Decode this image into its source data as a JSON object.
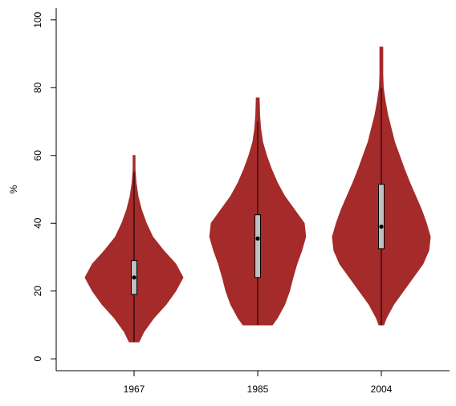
{
  "chart_data": {
    "type": "violin",
    "ylabel": "%",
    "categories": [
      "1967",
      "1985",
      "2004"
    ],
    "color": "#a52a2a",
    "box_color": "#bfbfbf",
    "ylim": [
      -3.5,
      103.5
    ],
    "yticks": [
      0,
      20,
      40,
      60,
      80,
      100
    ],
    "violins": [
      {
        "whisker_low": 5,
        "q1": 19,
        "median": 24,
        "q3": 29,
        "whisker_high": 55,
        "density_y": [
          5,
          8,
          12,
          16,
          20,
          24,
          28,
          32,
          36,
          40,
          44,
          48,
          52,
          56,
          60
        ],
        "density_width": [
          0.1,
          0.2,
          0.4,
          0.65,
          0.85,
          1,
          0.85,
          0.6,
          0.38,
          0.25,
          0.15,
          0.08,
          0.04,
          0.02,
          0.02
        ]
      },
      {
        "whisker_low": 10,
        "q1": 24,
        "median": 35.5,
        "q3": 42.5,
        "whisker_high": 70,
        "density_y": [
          10,
          12,
          16,
          20,
          24,
          28,
          32,
          36,
          40,
          44,
          48,
          52,
          56,
          60,
          64,
          68,
          72,
          77
        ],
        "density_width": [
          0.3,
          0.4,
          0.55,
          0.65,
          0.72,
          0.8,
          0.9,
          0.98,
          0.95,
          0.75,
          0.55,
          0.4,
          0.28,
          0.18,
          0.1,
          0.06,
          0.04,
          0.03
        ]
      },
      {
        "whisker_low": 10,
        "q1": 32.5,
        "median": 39,
        "q3": 51.5,
        "whisker_high": 80,
        "density_y": [
          10,
          12,
          16,
          20,
          24,
          28,
          32,
          36,
          40,
          44,
          48,
          52,
          56,
          60,
          64,
          68,
          72,
          76,
          80,
          84,
          88,
          92
        ],
        "density_width": [
          0.05,
          0.1,
          0.25,
          0.45,
          0.65,
          0.85,
          0.97,
          1,
          0.92,
          0.82,
          0.7,
          0.58,
          0.47,
          0.37,
          0.27,
          0.2,
          0.13,
          0.08,
          0.04,
          0.03,
          0.03,
          0.03
        ]
      }
    ]
  }
}
